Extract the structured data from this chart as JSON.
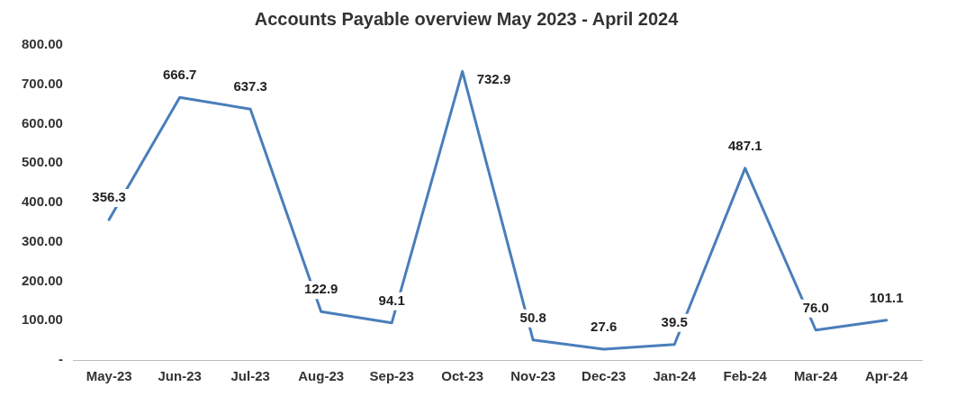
{
  "chart_data": {
    "type": "line",
    "title": "Accounts Payable overview May 2023 - April 2024",
    "categories": [
      "May-23",
      "Jun-23",
      "Jul-23",
      "Aug-23",
      "Sep-23",
      "Oct-23",
      "Nov-23",
      "Dec-23",
      "Jan-24",
      "Feb-24",
      "Mar-24",
      "Apr-24"
    ],
    "series": [
      {
        "color": "#4a7ebb",
        "values": [
          356.3,
          666.7,
          637.3,
          122.9,
          94.1,
          732.9,
          50.8,
          27.6,
          39.5,
          487.1,
          76.0,
          101.1
        ],
        "value_labels": [
          "356.3",
          "666.7",
          "637.3",
          "122.9",
          "94.1",
          "732.9",
          "50.8",
          "27.6",
          "39.5",
          "487.1",
          "76.0",
          "101.1"
        ]
      }
    ],
    "ylim": [
      0,
      800
    ],
    "yticks": [
      {
        "value": 0,
        "label": "-"
      },
      {
        "value": 100,
        "label": "100.00"
      },
      {
        "value": 200,
        "label": "200.00"
      },
      {
        "value": 300,
        "label": "300.00"
      },
      {
        "value": 400,
        "label": "400.00"
      },
      {
        "value": 500,
        "label": "500.00"
      },
      {
        "value": 600,
        "label": "600.00"
      },
      {
        "value": 700,
        "label": "700.00"
      },
      {
        "value": 800,
        "label": "800.00"
      }
    ],
    "grid": false,
    "legend": false,
    "marker": "none",
    "line_style": "solid"
  }
}
